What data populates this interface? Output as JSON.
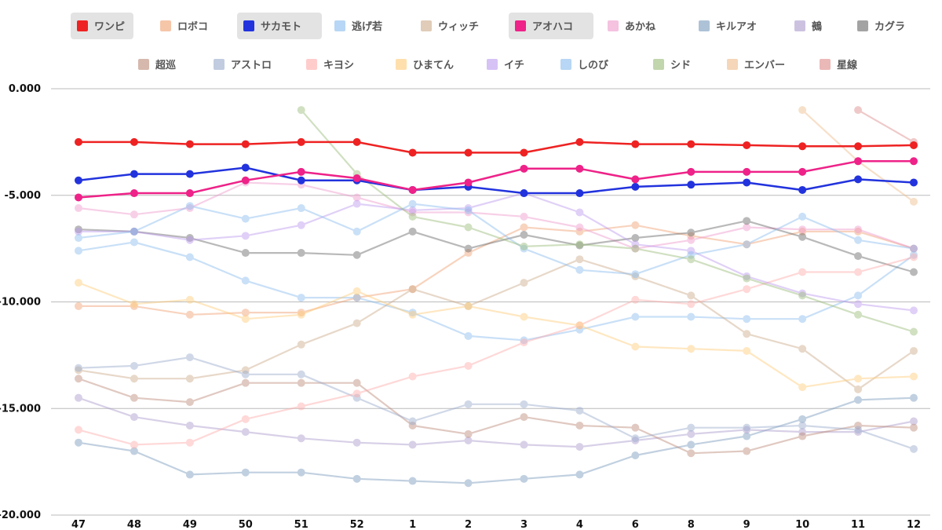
{
  "chart_data": {
    "type": "line",
    "title": "",
    "xlabel": "",
    "ylabel": "",
    "x": [
      "47",
      "48",
      "49",
      "50",
      "51",
      "52",
      "1",
      "2",
      "3",
      "4",
      "6",
      "8",
      "9",
      "10",
      "11",
      "12"
    ],
    "ylim": [
      -20,
      0
    ],
    "yticks": [
      0,
      -5,
      -10,
      -15,
      -20
    ],
    "ytick_labels": [
      "0.000",
      "-5.000",
      "-10.000",
      "-15.000",
      "-20.000"
    ],
    "grid": true,
    "legend_position": "top",
    "series": [
      {
        "name": "ワンピ",
        "color": "#ee2222",
        "highlight": true,
        "values": [
          -2.5,
          -2.5,
          -2.6,
          -2.6,
          -2.5,
          -2.5,
          -3.0,
          -3.0,
          -3.0,
          -2.5,
          -2.6,
          -2.6,
          -2.65,
          -2.7,
          -2.7,
          -2.65
        ]
      },
      {
        "name": "ロボコ",
        "color": "#f0a070",
        "highlight": false,
        "values": [
          -10.2,
          -10.2,
          -10.6,
          -10.5,
          -10.5,
          -9.8,
          -9.4,
          -7.7,
          -6.5,
          -6.7,
          -6.4,
          -6.9,
          -7.3,
          -6.7,
          -6.7,
          -7.5
        ]
      },
      {
        "name": "サカモト",
        "color": "#2233dd",
        "highlight": true,
        "values": [
          -4.3,
          -4.0,
          -4.0,
          -3.7,
          -4.3,
          -4.3,
          -4.75,
          -4.6,
          -4.9,
          -4.9,
          -4.6,
          -4.5,
          -4.4,
          -4.75,
          -4.25,
          -4.4
        ]
      },
      {
        "name": "逃げ若",
        "color": "#88bbee",
        "highlight": false,
        "values": [
          -7.6,
          -7.2,
          -7.9,
          -9.0,
          -9.8,
          -9.8,
          -10.5,
          -11.6,
          -11.8,
          -11.3,
          -10.7,
          -10.7,
          -10.8,
          -10.8,
          -9.7,
          -7.8
        ]
      },
      {
        "name": "ウィッチ",
        "color": "#ccaa88",
        "highlight": false,
        "values": [
          -13.2,
          -13.6,
          -13.6,
          -13.2,
          -12.0,
          -11.0,
          -9.4,
          -10.2,
          -9.1,
          -8.0,
          -8.8,
          -9.7,
          -11.5,
          -12.2,
          -14.1,
          -12.3
        ]
      },
      {
        "name": "アオハコ",
        "color": "#ee2288",
        "highlight": true,
        "values": [
          -5.1,
          -4.9,
          -4.9,
          -4.3,
          -3.9,
          -4.2,
          -4.75,
          -4.4,
          -3.75,
          -3.75,
          -4.25,
          -3.9,
          -3.9,
          -3.9,
          -3.4,
          -3.4
        ]
      },
      {
        "name": "あかね",
        "color": "#ee99cc",
        "highlight": false,
        "values": [
          -5.6,
          -5.9,
          -5.6,
          -4.4,
          -4.5,
          -5.1,
          -5.8,
          -5.8,
          -6.0,
          -6.5,
          -7.5,
          -7.1,
          -6.5,
          -6.6,
          -6.6,
          -7.5
        ]
      },
      {
        "name": "キルアオ",
        "color": "#7799bb",
        "highlight": false,
        "values": [
          -16.6,
          -17.0,
          -18.1,
          -18.0,
          -18.0,
          -18.3,
          -18.4,
          -18.5,
          -18.3,
          -18.1,
          -17.2,
          -16.7,
          -16.3,
          -15.5,
          -14.6,
          -14.5
        ]
      },
      {
        "name": "鵺",
        "color": "#aa99cc",
        "highlight": false,
        "values": [
          -14.5,
          -15.4,
          -15.8,
          -16.1,
          -16.4,
          -16.6,
          -16.7,
          -16.5,
          -16.7,
          -16.8,
          -16.5,
          -16.2,
          -16.0,
          -16.1,
          -16.1,
          -15.6
        ]
      },
      {
        "name": "カグラ",
        "color": "#666666",
        "highlight": false,
        "values": [
          -6.6,
          -6.7,
          -7.0,
          -7.7,
          -7.7,
          -7.8,
          -6.7,
          -7.5,
          -6.85,
          -7.35,
          -7.0,
          -6.75,
          -6.2,
          -6.95,
          -7.85,
          -8.6
        ]
      },
      {
        "name": "超巡",
        "color": "#bb8877",
        "highlight": false,
        "values": [
          -13.6,
          -14.5,
          -14.7,
          -13.8,
          -13.8,
          -13.8,
          -15.8,
          -16.2,
          -15.4,
          -15.8,
          -15.9,
          -17.1,
          -17.0,
          -16.3,
          -15.8,
          -15.9
        ]
      },
      {
        "name": "アストロ",
        "color": "#99aacc",
        "highlight": false,
        "values": [
          -13.1,
          -13.0,
          -12.6,
          -13.4,
          -13.4,
          -14.5,
          -15.6,
          -14.8,
          -14.8,
          -15.1,
          -16.4,
          -15.9,
          -15.9,
          -15.8,
          -16.0,
          -16.9
        ]
      },
      {
        "name": "キヨシ",
        "color": "#ffaaaa",
        "highlight": false,
        "values": [
          -16.0,
          -16.7,
          -16.6,
          -15.5,
          -14.9,
          -14.3,
          -13.5,
          -13.0,
          -11.9,
          -11.1,
          -9.9,
          -10.1,
          -9.4,
          -8.6,
          -8.6,
          -7.9
        ]
      },
      {
        "name": "ひまてん",
        "color": "#ffcc77",
        "highlight": false,
        "values": [
          -9.1,
          -10.1,
          -9.9,
          -10.8,
          -10.6,
          -9.5,
          -10.6,
          -10.2,
          -10.7,
          -11.1,
          -12.1,
          -12.2,
          -12.3,
          -14.0,
          -13.6,
          -13.5
        ]
      },
      {
        "name": "イチ",
        "color": "#bb99ee",
        "highlight": false,
        "values": [
          -6.7,
          -6.7,
          -7.1,
          -6.9,
          -6.4,
          -5.4,
          -5.7,
          -5.6,
          -4.9,
          -5.8,
          -7.3,
          -7.6,
          -8.8,
          -9.6,
          -10.1,
          -10.4
        ]
      },
      {
        "name": "しのび",
        "color": "#88bbee",
        "highlight": false,
        "values": [
          -7.0,
          -6.7,
          -5.5,
          -6.1,
          -5.6,
          -6.7,
          -5.4,
          -5.7,
          -7.5,
          -8.5,
          -8.7,
          -7.8,
          -7.3,
          -6.0,
          -7.1,
          -7.5
        ]
      },
      {
        "name": "シド",
        "color": "#99bb77",
        "highlight": false,
        "values": [
          null,
          null,
          null,
          null,
          -1.0,
          -4.0,
          -6.0,
          -6.5,
          -7.4,
          -7.3,
          -7.5,
          -8.0,
          -8.9,
          -9.7,
          -10.6,
          -11.4
        ]
      },
      {
        "name": "エンバー",
        "color": "#eebb88",
        "highlight": false,
        "values": [
          null,
          null,
          null,
          null,
          null,
          null,
          null,
          null,
          null,
          null,
          null,
          null,
          null,
          -1.0,
          -3.4,
          -5.3
        ]
      },
      {
        "name": "星線",
        "color": "#dd8888",
        "highlight": false,
        "values": [
          null,
          null,
          null,
          null,
          null,
          null,
          null,
          null,
          null,
          null,
          null,
          null,
          null,
          null,
          -1.0,
          -2.5
        ]
      }
    ]
  }
}
